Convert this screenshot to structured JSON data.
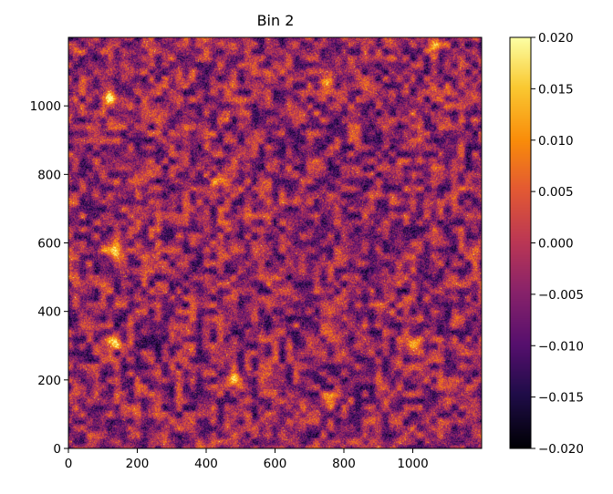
{
  "chart_data": {
    "type": "heatmap",
    "title": "Bin 2",
    "xlabel": "",
    "ylabel": "",
    "xlim": [
      0,
      1200
    ],
    "ylim": [
      0,
      1200
    ],
    "x_ticks": [
      0,
      200,
      400,
      600,
      800,
      1000
    ],
    "x_tick_labels": [
      "0",
      "200",
      "400",
      "600",
      "800",
      "1000"
    ],
    "y_ticks": [
      0,
      200,
      400,
      600,
      800,
      1000
    ],
    "y_tick_labels": [
      "0",
      "200",
      "400",
      "600",
      "800",
      "1000"
    ],
    "colormap": "inferno",
    "color_range": [
      -0.02,
      0.02
    ],
    "colorbar_ticks": [
      0.02,
      0.015,
      0.01,
      0.005,
      0.0,
      -0.005,
      -0.01,
      -0.015,
      -0.02
    ],
    "colorbar_tick_labels": [
      "0.020",
      "0.015",
      "0.010",
      "0.005",
      "0.000",
      "−0.005",
      "−0.010",
      "−0.015",
      "−0.020"
    ],
    "background_level": -0.004,
    "bright_clumps": [
      {
        "x": 130,
        "y": 310,
        "value": 0.02
      },
      {
        "x": 120,
        "y": 1025,
        "value": 0.018
      },
      {
        "x": 1000,
        "y": 305,
        "value": 0.017
      },
      {
        "x": 480,
        "y": 205,
        "value": 0.018
      },
      {
        "x": 760,
        "y": 140,
        "value": 0.016
      },
      {
        "x": 125,
        "y": 580,
        "value": 0.015
      },
      {
        "x": 750,
        "y": 1070,
        "value": 0.014
      },
      {
        "x": 440,
        "y": 780,
        "value": 0.012
      },
      {
        "x": 1060,
        "y": 1170,
        "value": 0.015
      }
    ]
  }
}
